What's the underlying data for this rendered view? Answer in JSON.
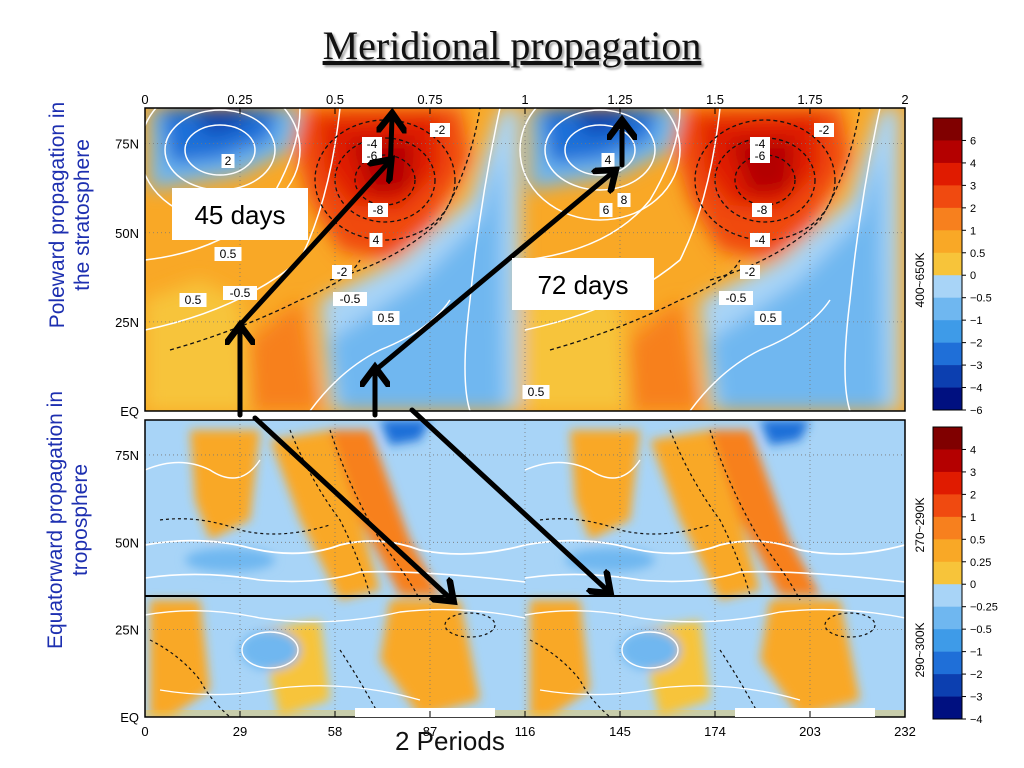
{
  "title": "Meridional propagation",
  "side_labels": {
    "top": [
      "Poleward propagation in",
      "the stratosphere"
    ],
    "bottom": [
      "Equatorward propagation in",
      "troposphere"
    ]
  },
  "footer_label": "2  Periods",
  "annotations": {
    "days_45": "45 days",
    "days_72": "72 days"
  },
  "chart_data": [
    {
      "type": "heatmap",
      "panel": "top",
      "x_top_ticks": [
        "0",
        "0.25",
        "0.5",
        "0.75",
        "1",
        "1.25",
        "1.5",
        "1.75",
        "2"
      ],
      "x_top_range": [
        0,
        2
      ],
      "y_ticks": [
        "75N",
        "50N",
        "25N",
        "EQ"
      ],
      "y_values": [
        75,
        50,
        25,
        0
      ],
      "ylim": [
        0,
        85
      ],
      "colorbar_label": "400~650K",
      "colorbar_levels": [
        "6",
        "4",
        "3",
        "2",
        "1",
        "0.5",
        "0",
        "−0.5",
        "−1",
        "−2",
        "−3",
        "−4",
        "−6"
      ],
      "contour_labels": [
        "-2",
        "-4",
        "-6",
        "-8",
        "4",
        "2",
        "0.5",
        "-0.5",
        "0.5",
        "0.5",
        "-0.5",
        "-2",
        "-4",
        "-8",
        "-4",
        "-6",
        "4",
        "6",
        "8",
        "-2",
        "-0.5",
        "0.5",
        "-2",
        "0.5"
      ],
      "grid": true
    },
    {
      "type": "heatmap",
      "panel": "bottom",
      "x_bottom_ticks": [
        "0",
        "29",
        "58",
        "87",
        "116",
        "145",
        "174",
        "203",
        "232"
      ],
      "x_bottom_range": [
        0,
        232
      ],
      "y_ticks": [
        "75N",
        "50N",
        "25N",
        "EQ"
      ],
      "y_values": [
        75,
        50,
        25,
        0
      ],
      "ylim": [
        0,
        85
      ],
      "colorbar_upper_label": "270~290K",
      "colorbar_lower_label": "290~300K",
      "colorbar_levels": [
        "4",
        "3",
        "2",
        "1",
        "0.5",
        "0.25",
        "0",
        "−0.25",
        "−0.5",
        "−1",
        "−2",
        "−3",
        "−4"
      ],
      "grid": true
    }
  ],
  "colors": {
    "scale": [
      "#800000",
      "#b40000",
      "#e01b00",
      "#f04a10",
      "#f7801e",
      "#f9a826",
      "#f7c43a",
      "#a8d4f7",
      "#6fb7f0",
      "#3e9be8",
      "#1f6fd8",
      "#0c3fb0",
      "#001080"
    ],
    "side_label": "#1d2fb0"
  }
}
